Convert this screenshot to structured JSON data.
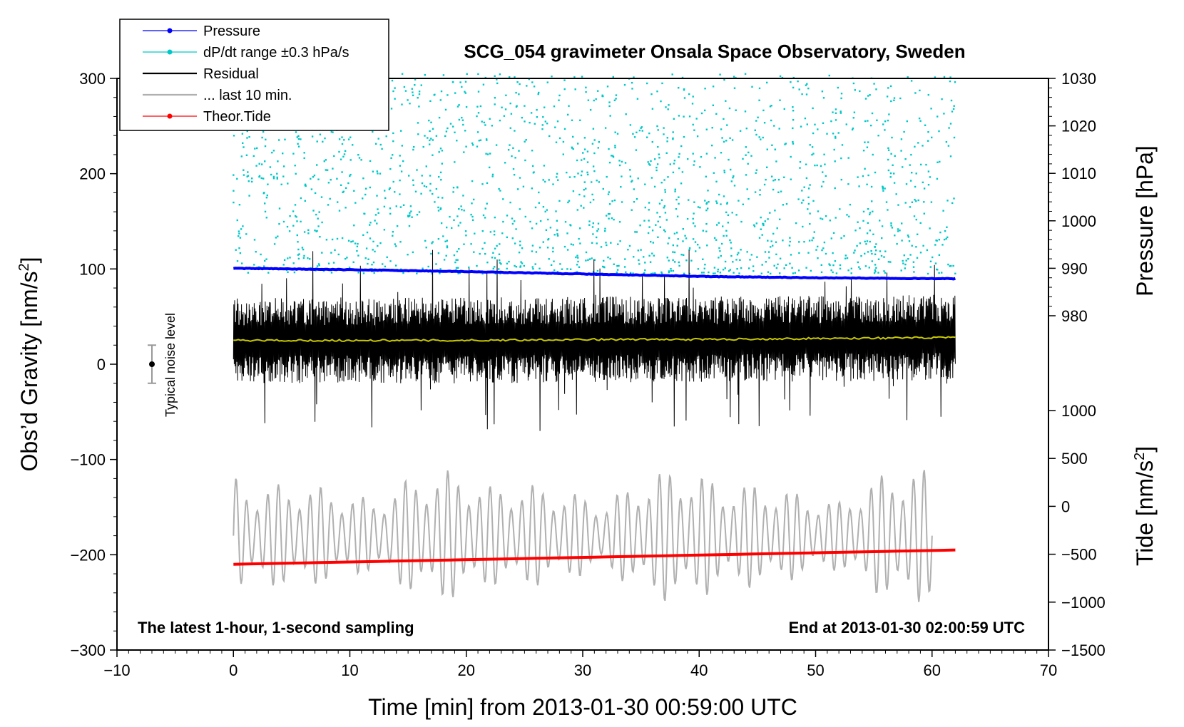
{
  "chart_data": {
    "type": "line",
    "title": "SCG_054 gravimeter Onsala Space Observatory, Sweden",
    "xlabel": "Time [min] from 2013-01-30 00:59:00 UTC",
    "ylabel_left": "Obs’d Gravity [nm/s",
    "ylabel_left_sup": "2",
    "ylabel_left_end": "]",
    "ylabel_right_pressure": "Pressure [hPa]",
    "ylabel_right_tide": "Tide [nm/s",
    "ylabel_right_tide_sup": "2",
    "ylabel_right_tide_end": "]",
    "xlim": [
      -10,
      70
    ],
    "ylim_left": [
      -300,
      300
    ],
    "pressure_range": [
      980,
      1030
    ],
    "tide_range": [
      -1500,
      1000
    ],
    "x_ticks": [
      "−10",
      "0",
      "10",
      "20",
      "30",
      "40",
      "50",
      "60",
      "70"
    ],
    "y_ticks_left": [
      "300",
      "200",
      "100",
      "0",
      "−100",
      "−200",
      "−300"
    ],
    "y_ticks_pressure": [
      "1030",
      "1020",
      "1010",
      "1000",
      "990",
      "980"
    ],
    "y_ticks_tide": [
      "1000",
      "500",
      "0",
      "−500",
      "−1000",
      "−1500"
    ],
    "annotation_left": "The latest 1-hour, 1-second sampling",
    "annotation_right": "End at 2013-01-30 02:00:59 UTC",
    "noise_label": "Typical noise level",
    "noise_level_halfwidth": 20,
    "legend": [
      {
        "label": "Pressure",
        "color": "#0000ff",
        "style": "line-dot"
      },
      {
        "label": "dP/dt range ±0.3 hPa/s",
        "color": "#00c8c8",
        "style": "line-dot"
      },
      {
        "label": "Residual",
        "color": "#000000",
        "style": "line"
      },
      {
        "label": "... last 10 min.",
        "color": "#b0b0b0",
        "style": "line"
      },
      {
        "label": "Theor.Tide",
        "color": "#ff0000",
        "style": "line-dot"
      }
    ],
    "series": [
      {
        "name": "Pressure",
        "unit": "hPa",
        "x": [
          0,
          10,
          20,
          30,
          40,
          50,
          62
        ],
        "values": [
          990.0,
          989.7,
          989.3,
          988.8,
          988.3,
          988.0,
          987.8
        ]
      },
      {
        "name": "Residual mean",
        "unit": "nm/s2",
        "x": [
          0,
          10,
          20,
          30,
          40,
          50,
          62
        ],
        "values": [
          25,
          25,
          25,
          26,
          26,
          27,
          28
        ],
        "amplitude": 45
      },
      {
        "name": "... last 10 min.",
        "unit": "nm/s2",
        "x_range": [
          0,
          60
        ],
        "center": -180,
        "amplitude_range": [
          -260,
          -80
        ]
      },
      {
        "name": "Theor.Tide",
        "unit": "nm/s2",
        "x": [
          0,
          62
        ],
        "values": [
          -210,
          -195
        ]
      }
    ],
    "colors": {
      "pressure": "#0000ff",
      "dpdt": "#00c8c8",
      "residual": "#000000",
      "smoothed": "#c8c800",
      "last10": "#b0b0b0",
      "tide": "#ff0000"
    }
  }
}
